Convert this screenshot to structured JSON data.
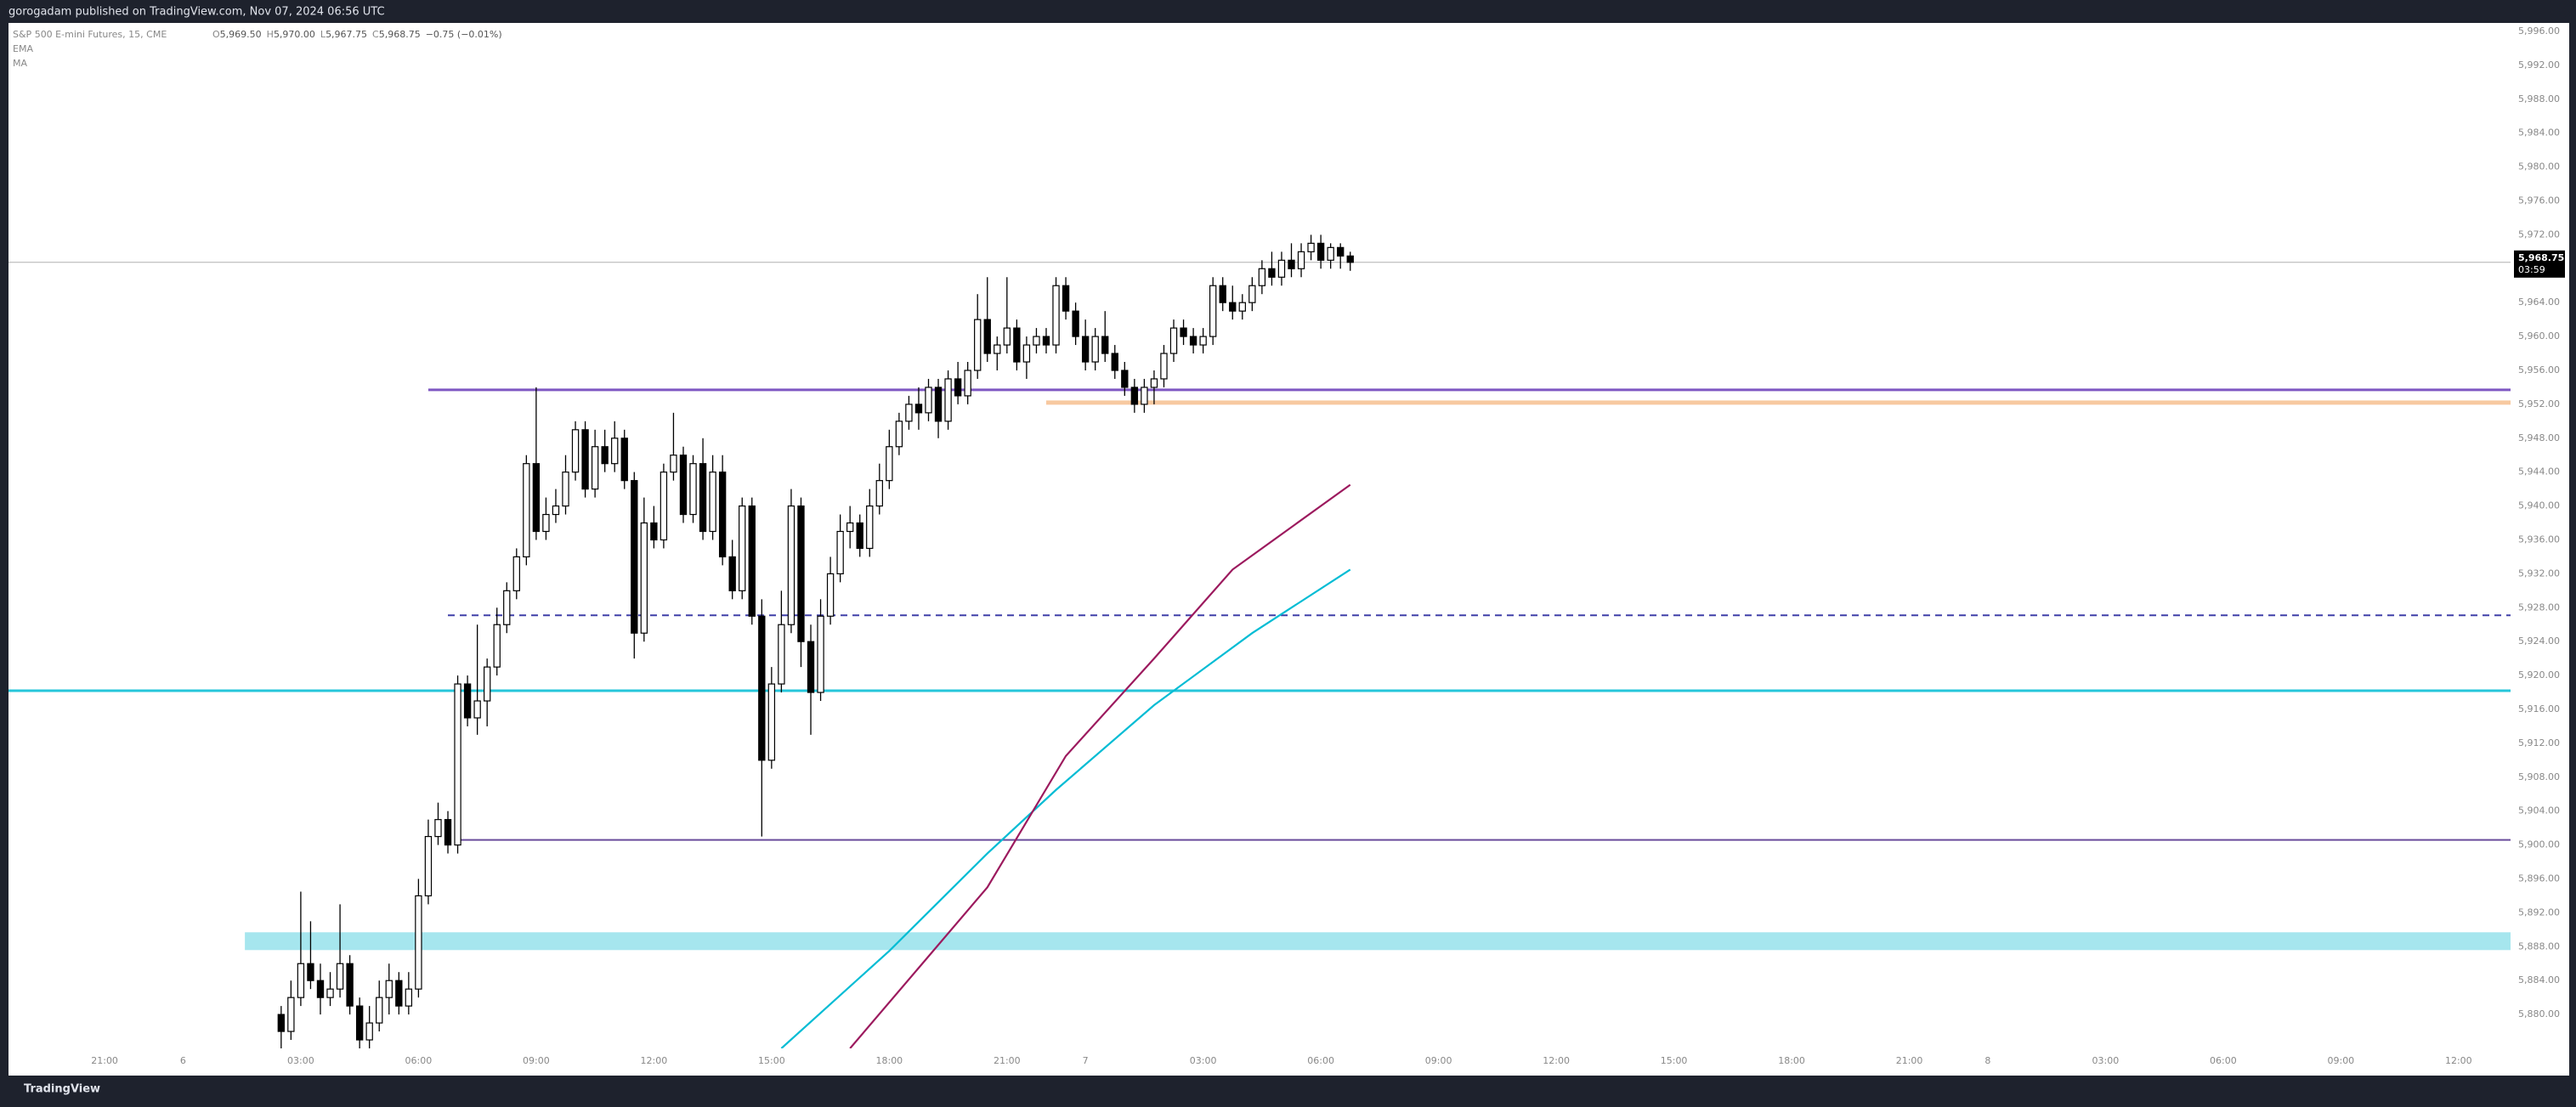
{
  "header": "gorogadam published on TradingView.com, Nov 07, 2024 06:56 UTC",
  "footer": "TradingView",
  "chart_data": {
    "type": "candlestick",
    "symbol": "S&P 500 E-mini Futures, 15, CME",
    "ohlc_legend": [
      {
        "label": "O",
        "value": "5,969.50"
      },
      {
        "label": "H",
        "value": "5,970.00"
      },
      {
        "label": "L",
        "value": "5,967.75"
      },
      {
        "label": "C",
        "value": "5,968.75"
      }
    ],
    "change": "−0.75 (−0.01%)",
    "up_color": "#ffffff",
    "down_color": "#000000",
    "xlim": [
      -25.8,
      229.3
    ],
    "xticks": [
      {
        "value": -16,
        "label": "21:00"
      },
      {
        "value": -8,
        "label": "6"
      },
      {
        "value": 4,
        "label": "03:00"
      },
      {
        "value": 16,
        "label": "06:00"
      },
      {
        "value": 28,
        "label": "09:00"
      },
      {
        "value": 40,
        "label": "12:00"
      },
      {
        "value": 52,
        "label": "15:00"
      },
      {
        "value": 64,
        "label": "18:00"
      },
      {
        "value": 76,
        "label": "21:00"
      },
      {
        "value": 84,
        "label": "7"
      },
      {
        "value": 96,
        "label": "03:00"
      },
      {
        "value": 108,
        "label": "06:00"
      },
      {
        "value": 120,
        "label": "09:00"
      },
      {
        "value": 132,
        "label": "12:00"
      },
      {
        "value": 144,
        "label": "15:00"
      },
      {
        "value": 156,
        "label": "18:00"
      },
      {
        "value": 168,
        "label": "21:00"
      },
      {
        "value": 176,
        "label": "8"
      },
      {
        "value": 188,
        "label": "03:00"
      },
      {
        "value": 200,
        "label": "06:00"
      },
      {
        "value": 212,
        "label": "09:00"
      },
      {
        "value": 224,
        "label": "12:00"
      }
    ],
    "ylim": [
      5876,
      5997
    ],
    "yticks": [
      {
        "value": 5880,
        "label": "5,880.00"
      },
      {
        "value": 5884,
        "label": "5,884.00"
      },
      {
        "value": 5888,
        "label": "5,888.00"
      },
      {
        "value": 5892,
        "label": "5,892.00"
      },
      {
        "value": 5896,
        "label": "5,896.00"
      },
      {
        "value": 5900,
        "label": "5,900.00"
      },
      {
        "value": 5904,
        "label": "5,904.00"
      },
      {
        "value": 5908,
        "label": "5,908.00"
      },
      {
        "value": 5912,
        "label": "5,912.00"
      },
      {
        "value": 5916,
        "label": "5,916.00"
      },
      {
        "value": 5920,
        "label": "5,920.00"
      },
      {
        "value": 5924,
        "label": "5,924.00"
      },
      {
        "value": 5928,
        "label": "5,928.00"
      },
      {
        "value": 5932,
        "label": "5,932.00"
      },
      {
        "value": 5936,
        "label": "5,936.00"
      },
      {
        "value": 5940,
        "label": "5,940.00"
      },
      {
        "value": 5944,
        "label": "5,944.00"
      },
      {
        "value": 5948,
        "label": "5,948.00"
      },
      {
        "value": 5952,
        "label": "5,952.00"
      },
      {
        "value": 5956,
        "label": "5,956.00"
      },
      {
        "value": 5960,
        "label": "5,960.00"
      },
      {
        "value": 5964,
        "label": "5,964.00"
      },
      {
        "value": 5968,
        "label": "5,968.00"
      },
      {
        "value": 5972,
        "label": "5,972.00"
      },
      {
        "value": 5976,
        "label": "5,976.00"
      },
      {
        "value": 5980,
        "label": "5,980.00"
      },
      {
        "value": 5984,
        "label": "5,984.00"
      },
      {
        "value": 5988,
        "label": "5,988.00"
      },
      {
        "value": 5992,
        "label": "5,992.00"
      },
      {
        "value": 5996,
        "label": "5,996.00"
      }
    ],
    "x": [
      2,
      3,
      4,
      5,
      6,
      7,
      8,
      9,
      10,
      11,
      12,
      13,
      14,
      15,
      16,
      17,
      18,
      19,
      20,
      21,
      22,
      23,
      24,
      25,
      26,
      27,
      28,
      29,
      30,
      31,
      32,
      33,
      34,
      35,
      36,
      37,
      38,
      39,
      40,
      41,
      42,
      43,
      44,
      45,
      46,
      47,
      48,
      49,
      50,
      51,
      52,
      53,
      54,
      55,
      56,
      57,
      58,
      59,
      60,
      61,
      62,
      63,
      64,
      65,
      66,
      67,
      68,
      69,
      70,
      71,
      72,
      73,
      74,
      75,
      76,
      77,
      78,
      79,
      80,
      81,
      82,
      83,
      84,
      85,
      86,
      87,
      88,
      89,
      90,
      91,
      92,
      93,
      94,
      95,
      96,
      97,
      98,
      99,
      100,
      101,
      102,
      103,
      104,
      105,
      106,
      107,
      108,
      109,
      110,
      111
    ],
    "ohlc": [
      [
        5880,
        5881,
        5876,
        5878
      ],
      [
        5878,
        5884,
        5877,
        5882
      ],
      [
        5882,
        5894.5,
        5881,
        5886
      ],
      [
        5886,
        5891,
        5883,
        5884
      ],
      [
        5884,
        5886,
        5880,
        5882
      ],
      [
        5882,
        5885,
        5881,
        5883
      ],
      [
        5883,
        5893,
        5882,
        5886
      ],
      [
        5886,
        5887,
        5880,
        5881
      ],
      [
        5881,
        5882,
        5876,
        5877
      ],
      [
        5877,
        5881,
        5876,
        5879
      ],
      [
        5879,
        5884,
        5878,
        5882
      ],
      [
        5882,
        5886,
        5880,
        5884
      ],
      [
        5884,
        5885,
        5880,
        5881
      ],
      [
        5881,
        5885,
        5880,
        5883
      ],
      [
        5883,
        5896,
        5882,
        5894
      ],
      [
        5894,
        5903,
        5893,
        5901
      ],
      [
        5901,
        5905,
        5900,
        5903
      ],
      [
        5903,
        5904,
        5899,
        5900
      ],
      [
        5900,
        5920,
        5899,
        5919
      ],
      [
        5919,
        5920,
        5914,
        5915
      ],
      [
        5915,
        5926,
        5913,
        5917
      ],
      [
        5917,
        5922,
        5914,
        5921
      ],
      [
        5921,
        5928,
        5920,
        5926
      ],
      [
        5926,
        5931,
        5925,
        5930
      ],
      [
        5930,
        5935,
        5929,
        5934
      ],
      [
        5934,
        5946,
        5933,
        5945
      ],
      [
        5945,
        5954,
        5936,
        5937
      ],
      [
        5937,
        5941,
        5936,
        5939
      ],
      [
        5939,
        5942,
        5938,
        5940
      ],
      [
        5940,
        5946,
        5939,
        5944
      ],
      [
        5944,
        5950,
        5943,
        5949
      ],
      [
        5949,
        5950,
        5941,
        5942
      ],
      [
        5942,
        5949,
        5941,
        5947
      ],
      [
        5947,
        5949,
        5944,
        5945
      ],
      [
        5945,
        5950,
        5944,
        5948
      ],
      [
        5948,
        5949,
        5942,
        5943
      ],
      [
        5943,
        5944,
        5922,
        5925
      ],
      [
        5925,
        5941,
        5924,
        5938
      ],
      [
        5938,
        5940,
        5935,
        5936
      ],
      [
        5936,
        5945,
        5935,
        5944
      ],
      [
        5944,
        5951,
        5943,
        5946
      ],
      [
        5946,
        5947,
        5938,
        5939
      ],
      [
        5939,
        5946,
        5938,
        5945
      ],
      [
        5945,
        5948,
        5936,
        5937
      ],
      [
        5937,
        5946,
        5936,
        5944
      ],
      [
        5944,
        5946,
        5933,
        5934
      ],
      [
        5934,
        5936,
        5929,
        5930
      ],
      [
        5930,
        5941,
        5929,
        5940
      ],
      [
        5940,
        5941,
        5926,
        5927
      ],
      [
        5927,
        5929,
        5901,
        5910
      ],
      [
        5910,
        5921,
        5909,
        5919
      ],
      [
        5919,
        5930,
        5918,
        5926
      ],
      [
        5926,
        5942,
        5925,
        5940
      ],
      [
        5940,
        5941,
        5921,
        5924
      ],
      [
        5924,
        5926,
        5913,
        5918
      ],
      [
        5918,
        5929,
        5917,
        5927
      ],
      [
        5927,
        5934,
        5926,
        5932
      ],
      [
        5932,
        5939,
        5931,
        5937
      ],
      [
        5937,
        5940,
        5935,
        5938
      ],
      [
        5938,
        5939,
        5934,
        5935
      ],
      [
        5935,
        5942,
        5934,
        5940
      ],
      [
        5940,
        5945,
        5939,
        5943
      ],
      [
        5943,
        5949,
        5942,
        5947
      ],
      [
        5947,
        5951,
        5946,
        5950
      ],
      [
        5950,
        5953,
        5949,
        5952
      ],
      [
        5952,
        5954,
        5949,
        5951
      ],
      [
        5951,
        5955,
        5950,
        5954
      ],
      [
        5954,
        5955,
        5948,
        5950
      ],
      [
        5950,
        5956,
        5949,
        5955
      ],
      [
        5955,
        5957,
        5952,
        5953
      ],
      [
        5953,
        5957,
        5952,
        5956
      ],
      [
        5956,
        5965,
        5955,
        5962
      ],
      [
        5962,
        5967,
        5957,
        5958
      ],
      [
        5958,
        5960,
        5956,
        5959
      ],
      [
        5959,
        5967,
        5958,
        5961
      ],
      [
        5961,
        5962,
        5956,
        5957
      ],
      [
        5957,
        5960,
        5955,
        5959
      ],
      [
        5959,
        5961,
        5958,
        5960
      ],
      [
        5960,
        5961,
        5958,
        5959
      ],
      [
        5959,
        5967,
        5958,
        5966
      ],
      [
        5966,
        5967,
        5962,
        5963
      ],
      [
        5963,
        5964,
        5959,
        5960
      ],
      [
        5960,
        5962,
        5956,
        5957
      ],
      [
        5957,
        5961,
        5956,
        5960
      ],
      [
        5960,
        5963,
        5957,
        5958
      ],
      [
        5958,
        5959,
        5955,
        5956
      ],
      [
        5956,
        5957,
        5953,
        5954
      ],
      [
        5954,
        5955,
        5951,
        5952
      ],
      [
        5952,
        5955,
        5951,
        5954
      ],
      [
        5954,
        5956,
        5952,
        5955
      ],
      [
        5955,
        5959,
        5954,
        5958
      ],
      [
        5958,
        5962,
        5957,
        5961
      ],
      [
        5961,
        5962,
        5959,
        5960
      ],
      [
        5960,
        5961,
        5958,
        5959
      ],
      [
        5959,
        5961,
        5958,
        5960
      ],
      [
        5960,
        5967,
        5959,
        5966
      ],
      [
        5966,
        5967,
        5963,
        5964
      ],
      [
        5964,
        5966,
        5962,
        5963
      ],
      [
        5963,
        5965,
        5962,
        5964
      ],
      [
        5964,
        5967,
        5963,
        5966
      ],
      [
        5966,
        5969,
        5965,
        5968
      ],
      [
        5968,
        5970,
        5966,
        5967
      ],
      [
        5967,
        5970,
        5966,
        5969
      ],
      [
        5969,
        5971,
        5967,
        5968
      ],
      [
        5968,
        5971,
        5967,
        5970
      ],
      [
        5970,
        5972,
        5969,
        5971
      ],
      [
        5971,
        5972,
        5968,
        5969
      ],
      [
        5969,
        5971,
        5968,
        5970.5
      ],
      [
        5970.5,
        5971,
        5968,
        5969.5
      ],
      [
        5969.5,
        5970,
        5967.75,
        5968.75
      ]
    ],
    "last_price": {
      "value": 5968.75,
      "label": "5,968.75"
    },
    "countdown": "03:59",
    "levels": [
      {
        "value": 5953.7,
        "start": 17,
        "color": "#7e57c2",
        "style": "solid",
        "width": 3
      },
      {
        "value": 5952.2,
        "start": 80,
        "color": "#f7c9a0",
        "style": "solid",
        "width": 5
      },
      {
        "value": 5927.1,
        "start": 19,
        "color": "#3f3fa8",
        "style": "dashed",
        "width": 2
      },
      {
        "value": 5918.2,
        "color": "#26c6da",
        "style": "solid",
        "width": 3
      },
      {
        "value": 5900.6,
        "start": 20,
        "color": "#6a4c9c",
        "style": "solid",
        "width": 2
      }
    ],
    "zone": {
      "low": 5887.6,
      "high": 5889.7,
      "start": -1.7,
      "color": "#a6e6ee"
    },
    "series": [
      {
        "name": "EMA",
        "color": "#00bcd4",
        "x": [
          53,
          64,
          74,
          81,
          91,
          101,
          111
        ],
        "values": [
          5876,
          5887.5,
          5899,
          5906.5,
          5916.5,
          5925,
          5932.5
        ]
      },
      {
        "name": "MA",
        "color": "#9c1a5e",
        "x": [
          60,
          67,
          74,
          82,
          91,
          99,
          111
        ],
        "values": [
          5876,
          5885.5,
          5895,
          5910.5,
          5922,
          5932.5,
          5942.5
        ]
      }
    ]
  }
}
